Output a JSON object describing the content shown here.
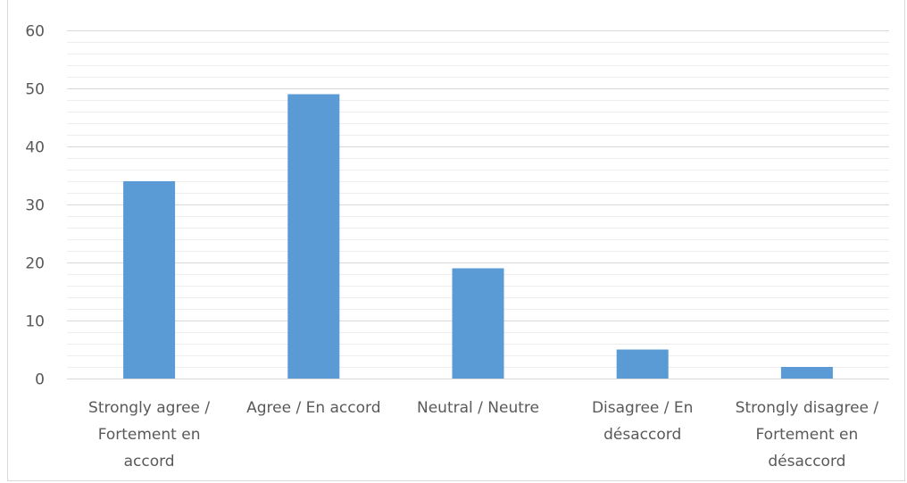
{
  "chart_data": {
    "type": "bar",
    "title": "",
    "categories": [
      [
        "Strongly agree /",
        "Fortement en",
        "accord"
      ],
      [
        "Agree / En accord"
      ],
      [
        "Neutral / Neutre"
      ],
      [
        "Disagree / En",
        "désaccord"
      ],
      [
        "Strongly disagree /",
        "Fortement en",
        "désaccord"
      ]
    ],
    "values": [
      34,
      49,
      19,
      5,
      2
    ],
    "ylim": [
      0,
      60
    ],
    "yticks": [
      0,
      10,
      20,
      30,
      40,
      50,
      60
    ],
    "xlabel": "",
    "ylabel": "",
    "grid": "major and minor horizontal",
    "legend": "none",
    "bar_color": "#5b9bd5",
    "gridline_color": "#d9d9d9",
    "text_color": "#595959"
  }
}
